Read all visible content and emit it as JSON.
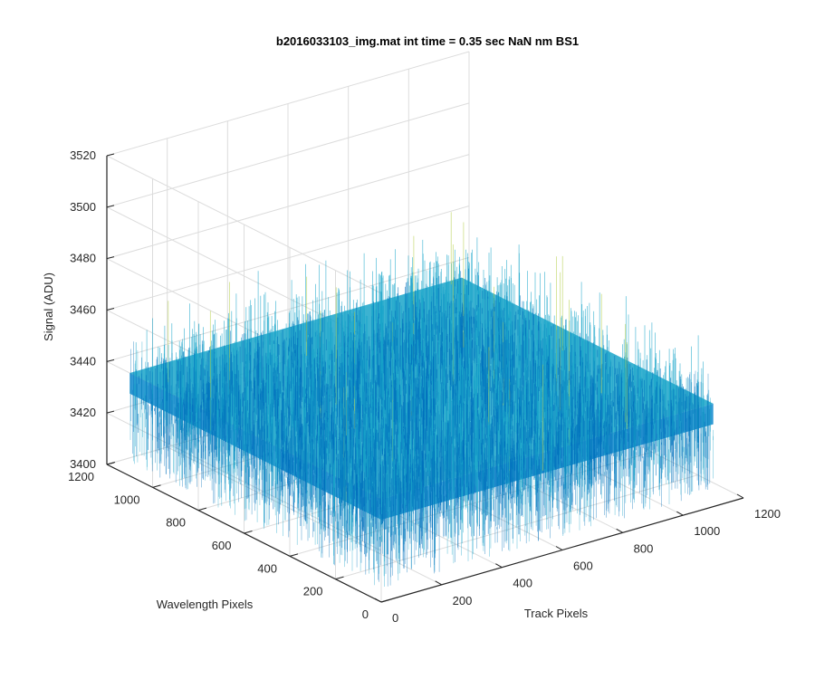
{
  "chart_data": {
    "type": "surface",
    "title": "b2016033103_img.mat int time = 0.35 sec  NaN nm BS1",
    "xlabel": "Track Pixels",
    "ylabel": "Wavelength Pixels",
    "zlabel": "Signal (ADU)",
    "xlim": [
      0,
      1200
    ],
    "ylim": [
      0,
      1200
    ],
    "zlim": [
      3400,
      3520
    ],
    "x_ticks": [
      "0",
      "200",
      "400",
      "600",
      "800",
      "1000",
      "1200"
    ],
    "y_ticks": [
      "0",
      "200",
      "400",
      "600",
      "800",
      "1000",
      "1200"
    ],
    "z_ticks": [
      "3400",
      "3420",
      "3440",
      "3460",
      "3480",
      "3500",
      "3520"
    ],
    "x_extent": [
      0,
      1100
    ],
    "y_extent": [
      0,
      1100
    ],
    "surface_mean": 3440,
    "surface_noise_range": [
      3405,
      3505
    ],
    "grid": true,
    "colormap": "parula",
    "colors": {
      "axis": "#262626",
      "grid": "#dcdcdc",
      "surface_low": "#0072bd",
      "surface_mid": "#1aa5c9",
      "surface_high": "#b6cf4a"
    }
  }
}
